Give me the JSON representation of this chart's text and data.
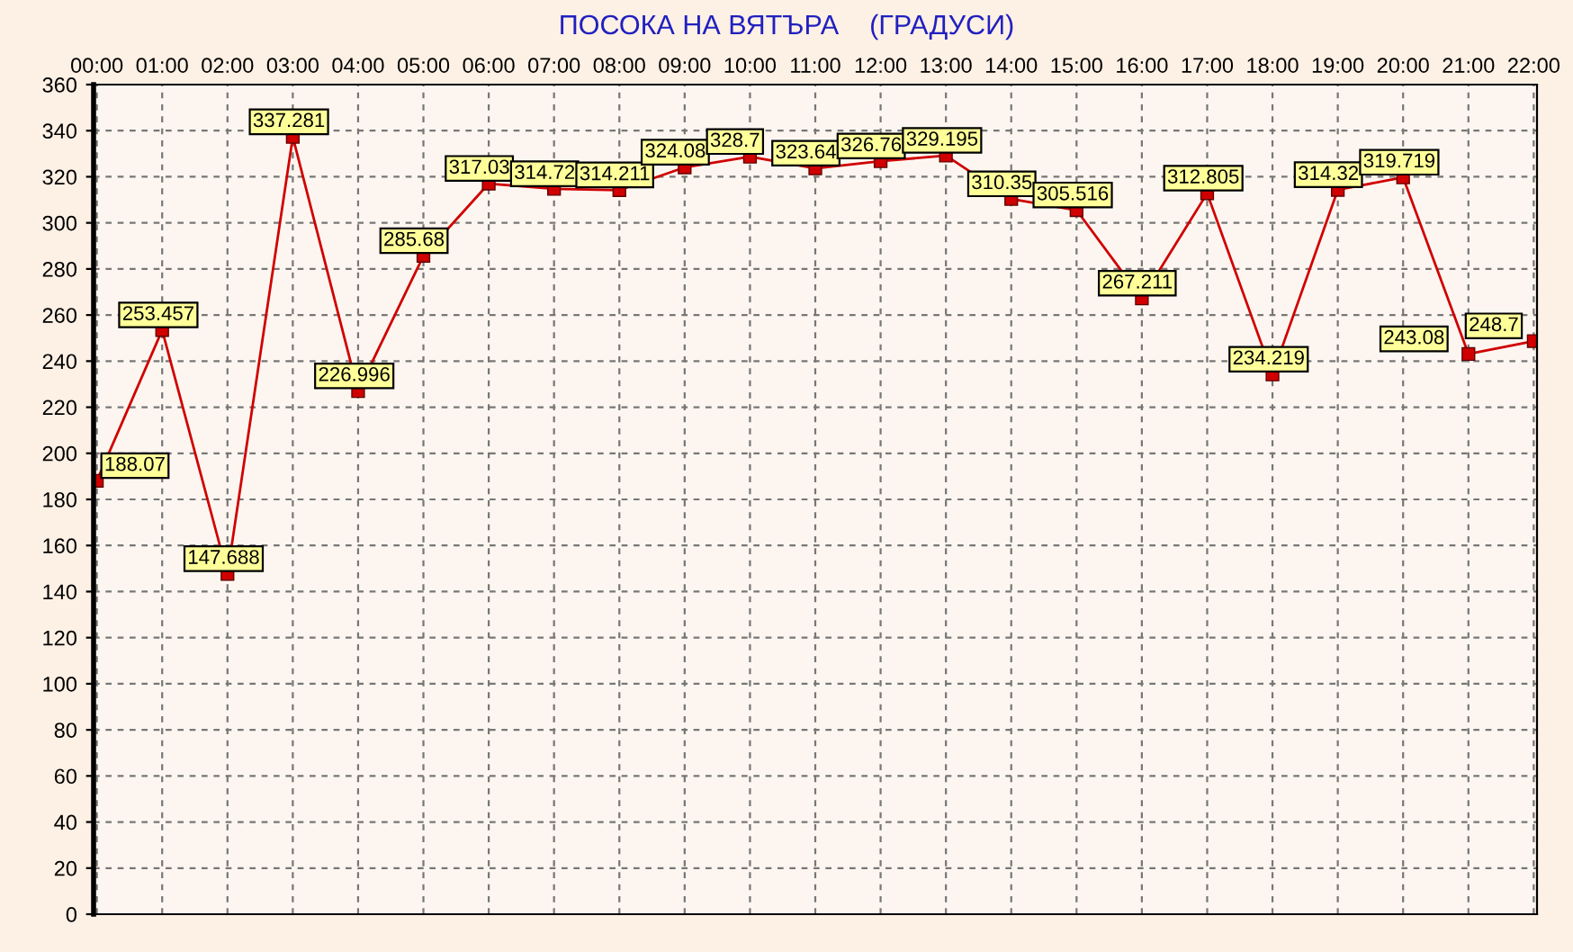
{
  "chart_data": {
    "type": "line",
    "title": "ПОСОКА НА ВЯТЪРА    (ГРАДУСИ)",
    "categories": [
      "00:00",
      "01:00",
      "02:00",
      "03:00",
      "04:00",
      "05:00",
      "06:00",
      "07:00",
      "08:00",
      "09:00",
      "10:00",
      "11:00",
      "12:00",
      "13:00",
      "14:00",
      "15:00",
      "16:00",
      "17:00",
      "18:00",
      "19:00",
      "20:00",
      "21:00",
      "22:00"
    ],
    "series": [
      {
        "color": "#d00000",
        "values": [
          188.07,
          253.457,
          147.688,
          337.281,
          226.996,
          285.68,
          317.03,
          314.72,
          314.211,
          324.08,
          328.7,
          323.64,
          326.76,
          329.195,
          310.35,
          305.516,
          267.211,
          312.805,
          234.219,
          314.32,
          319.719,
          243.08,
          248.7
        ]
      }
    ],
    "ylim": [
      0,
      360
    ],
    "yticks": [
      0,
      20,
      40,
      60,
      80,
      100,
      120,
      140,
      160,
      180,
      200,
      220,
      240,
      260,
      280,
      300,
      320,
      340,
      360
    ],
    "grid": true,
    "marker": "square",
    "line_style": "solid",
    "data_labels": true
  }
}
